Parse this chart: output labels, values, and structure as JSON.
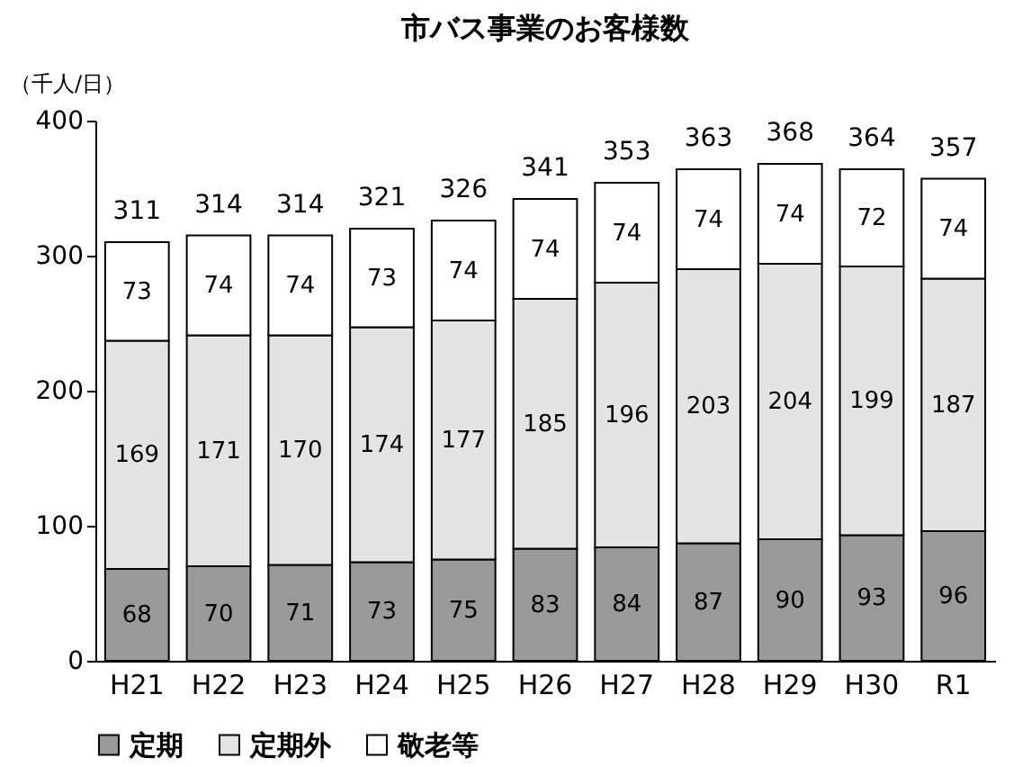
{
  "chart_data": {
    "type": "bar",
    "title": "市バス事業のお客様数",
    "ylabel": "（千人/日）",
    "categories": [
      "H21",
      "H22",
      "H23",
      "H24",
      "H25",
      "H26",
      "H27",
      "H28",
      "H29",
      "H30",
      "R1"
    ],
    "series": [
      {
        "name": "定期",
        "color": "#9a9a9a",
        "values": [
          68,
          70,
          71,
          73,
          75,
          83,
          84,
          87,
          90,
          93,
          96
        ]
      },
      {
        "name": "定期外",
        "color": "#e4e4e4",
        "values": [
          169,
          171,
          170,
          174,
          177,
          185,
          196,
          203,
          204,
          199,
          187
        ]
      },
      {
        "name": "敬老等",
        "color": "#ffffff",
        "values": [
          73,
          74,
          74,
          73,
          74,
          74,
          74,
          74,
          74,
          72,
          74
        ]
      }
    ],
    "stacked": true,
    "data_labels": true,
    "totals": [
      "311",
      "314",
      "314",
      "321",
      "326",
      "341",
      "353",
      "363",
      "368",
      "364",
      "357"
    ],
    "ylim": [
      0,
      400
    ],
    "yticks": [
      0,
      100,
      200,
      300,
      400
    ],
    "grid": false,
    "legend": "bottom"
  }
}
